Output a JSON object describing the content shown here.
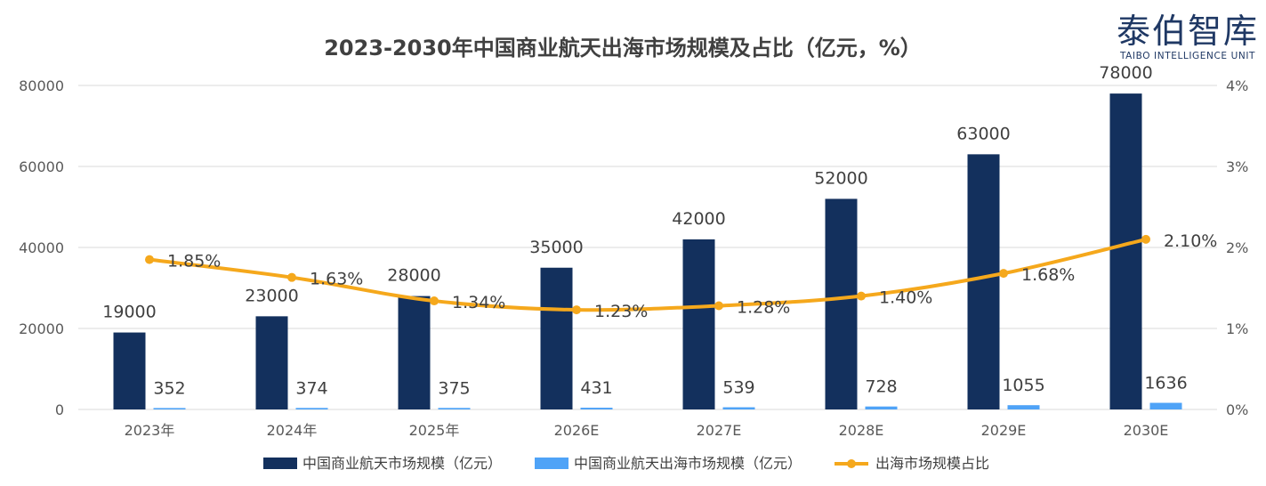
{
  "logo": {
    "cn": "泰伯智库",
    "en": "TAIBO INTELLIGENCE UNIT"
  },
  "colors": {
    "scale": "#13305d",
    "overseas": "#4fa3f7",
    "share": "#f5a81c"
  },
  "chart_data": {
    "type": "bar",
    "title": "2023-2030年中国商业航天出海市场规模及占比（亿元，%）",
    "categories": [
      "2023年",
      "2024年",
      "2025年",
      "2026E",
      "2027E",
      "2028E",
      "2029E",
      "2030E"
    ],
    "series": [
      {
        "name": "中国商业航天市场规模（亿元）",
        "type": "bar",
        "axis": "left",
        "values": [
          19000,
          23000,
          28000,
          35000,
          42000,
          52000,
          63000,
          78000
        ],
        "labels": [
          "19000",
          "23000",
          "28000",
          "35000",
          "42000",
          "52000",
          "63000",
          "78000"
        ]
      },
      {
        "name": "中国商业航天出海市场规模（亿元）",
        "type": "bar",
        "axis": "left",
        "values": [
          352,
          374,
          375,
          431,
          539,
          728,
          1055,
          1636
        ],
        "labels": [
          "352",
          "374",
          "375",
          "431",
          "539",
          "728",
          "1055",
          "1636"
        ]
      },
      {
        "name": "出海市场规模占比",
        "type": "line",
        "axis": "right",
        "values": [
          1.85,
          1.63,
          1.34,
          1.23,
          1.28,
          1.4,
          1.68,
          2.1
        ],
        "labels": [
          "1.85%",
          "1.63%",
          "1.34%",
          "1.23%",
          "1.28%",
          "1.40%",
          "1.68%",
          "2.10%"
        ]
      }
    ],
    "y_left": {
      "ylim": [
        0,
        80000
      ],
      "ticks": [
        "0",
        "20000",
        "40000",
        "60000",
        "80000"
      ]
    },
    "y_right": {
      "ylim": [
        0,
        4
      ],
      "ticks": [
        "0%",
        "1%",
        "2%",
        "3%",
        "4%"
      ]
    },
    "grid": true,
    "legend_position": "bottom"
  }
}
